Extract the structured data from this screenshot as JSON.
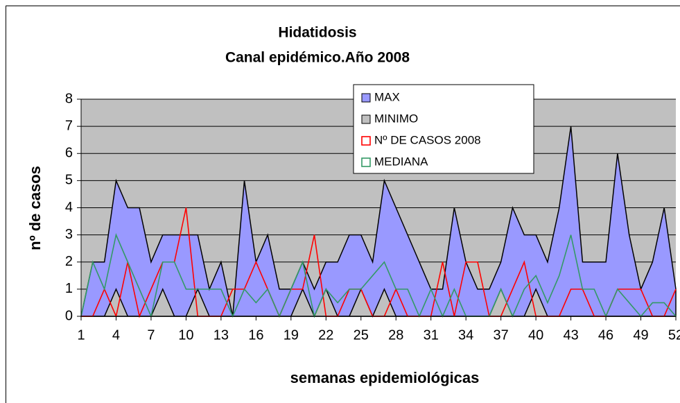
{
  "chart_data": {
    "type": "area",
    "title": [
      "Hidatidosis",
      "Canal epidémico.Año 2008"
    ],
    "xlabel": "semanas epidemiológicas",
    "ylabel": "nº de casos",
    "x": [
      1,
      2,
      3,
      4,
      5,
      6,
      7,
      8,
      9,
      10,
      11,
      12,
      13,
      14,
      15,
      16,
      17,
      18,
      19,
      20,
      21,
      22,
      23,
      24,
      25,
      26,
      27,
      28,
      29,
      30,
      31,
      32,
      33,
      34,
      35,
      36,
      37,
      38,
      39,
      40,
      41,
      42,
      43,
      44,
      45,
      46,
      47,
      48,
      49,
      50,
      51,
      52
    ],
    "xlim": [
      1,
      52
    ],
    "xticks": [
      1,
      4,
      7,
      10,
      13,
      16,
      19,
      22,
      25,
      28,
      31,
      34,
      37,
      40,
      43,
      46,
      49,
      52
    ],
    "ylim": [
      0,
      8
    ],
    "yticks": [
      0,
      1,
      2,
      3,
      4,
      5,
      6,
      7,
      8
    ],
    "grid": true,
    "legend": "top",
    "series": [
      {
        "name": "MAX",
        "type": "area",
        "color": "#9999ff",
        "values": [
          0,
          2,
          2,
          5,
          4,
          4,
          2,
          3,
          3,
          3,
          3,
          1,
          2,
          0,
          5,
          2,
          3,
          1,
          1,
          2,
          1,
          2,
          2,
          3,
          3,
          2,
          5,
          4,
          3,
          2,
          1,
          1,
          4,
          2,
          1,
          1,
          2,
          4,
          3,
          3,
          2,
          4,
          7,
          2,
          2,
          2,
          6,
          3,
          1,
          2,
          4,
          1
        ]
      },
      {
        "name": "MINIMO",
        "type": "area",
        "color": "#c0c0c0",
        "values": [
          0,
          0,
          0,
          1,
          0,
          0,
          0,
          1,
          0,
          0,
          1,
          0,
          0,
          0,
          0,
          0,
          0,
          0,
          0,
          1,
          0,
          1,
          0,
          0,
          1,
          0,
          1,
          0,
          0,
          0,
          0,
          0,
          0,
          0,
          0,
          0,
          1,
          0,
          0,
          1,
          0,
          0,
          0,
          0,
          0,
          0,
          0,
          0,
          0,
          0,
          0,
          0
        ]
      },
      {
        "name": "Nº DE CASOS 2008",
        "type": "line",
        "color": "#ff0000",
        "values": [
          0,
          0,
          1,
          0,
          2,
          0,
          1,
          2,
          2,
          4,
          0,
          0,
          0,
          1,
          1,
          2,
          1,
          0,
          1,
          1,
          3,
          0,
          0,
          1,
          1,
          0,
          0,
          1,
          0,
          0,
          0,
          2,
          0,
          2,
          2,
          0,
          0,
          1,
          2,
          0,
          0,
          0,
          1,
          1,
          0,
          0,
          1,
          1,
          1,
          0,
          0,
          1
        ]
      },
      {
        "name": "MEDIANA",
        "type": "line",
        "color": "#339966",
        "values": [
          0,
          2,
          1,
          3,
          2,
          1,
          0,
          2,
          2,
          1,
          1,
          1,
          1,
          0,
          1,
          0.5,
          1,
          0,
          1,
          2,
          0,
          1,
          0.5,
          1,
          1,
          1.5,
          2,
          1,
          1,
          0,
          1,
          0,
          1,
          0,
          0,
          0,
          1,
          0,
          1,
          1.5,
          0.5,
          1.5,
          3,
          1,
          1,
          0,
          1,
          0.5,
          0,
          0.5,
          0.5,
          0
        ]
      }
    ]
  }
}
